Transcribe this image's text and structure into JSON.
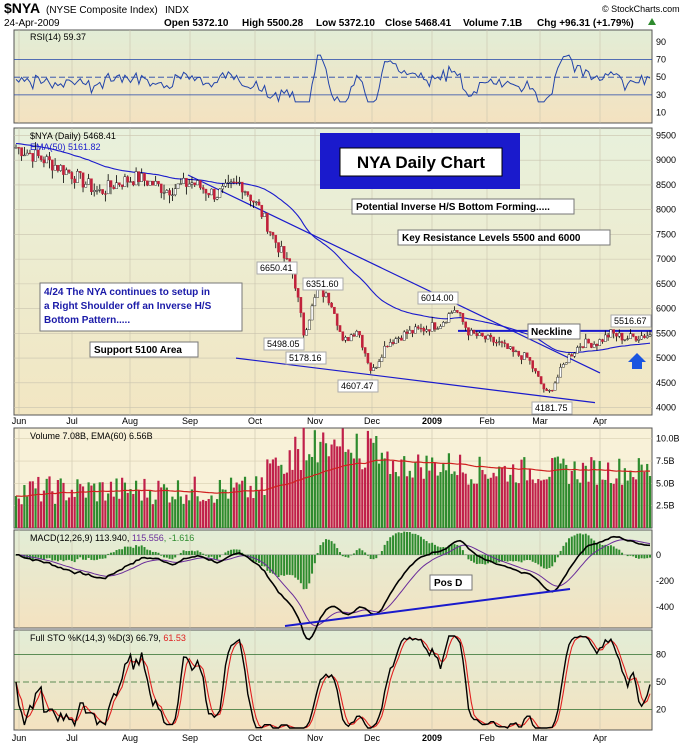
{
  "header": {
    "symbol": "$NYA",
    "name": "(NYSE Composite Index)",
    "exchange": "INDX",
    "date": "24-Apr-2009",
    "open": "Open 5372.10",
    "high": "High 5500.28",
    "low": "Low 5372.10",
    "close": "Close 5468.41",
    "volume": "Volume 7.1B",
    "chg": "Chg +96.31 (+1.79%)",
    "chg_arrow": "up-triangle-icon",
    "watermark": "© StockCharts.com"
  },
  "colors": {
    "panel_bg": "#f8f1d8",
    "price_top": "#e8f1dc",
    "price_bottom": "#f2e6c2",
    "price_line": "#000000",
    "ema": "#1a1acc",
    "trend": "#1a1acc",
    "rsi": "#2244aa",
    "vol_up": "#2e8b2e",
    "vol_down": "#c0204a",
    "vol_ema": "#d02020",
    "macd": "#000000",
    "signal": "#6a2c9a",
    "hist": "#2e8b2e",
    "sto_k": "#000000",
    "sto_d": "#e02020",
    "title_box": "#1a1acc"
  },
  "x_axis": {
    "months": [
      "Jun",
      "Jul",
      "Aug",
      "Sep",
      "Oct",
      "Nov",
      "Dec",
      "2009",
      "Feb",
      "Mar",
      "Apr"
    ]
  },
  "rsi": {
    "label": "RSI(14) 59.37",
    "ticks": [
      "90",
      "70",
      "50",
      "30",
      "10"
    ],
    "overbought": 70,
    "oversold": 30
  },
  "price": {
    "label": "$NYA (Daily) 5468.41",
    "ema_label": "EMA(50) 5161.82",
    "ticks": [
      "9500",
      "9000",
      "8500",
      "8000",
      "7500",
      "7000",
      "6500",
      "6000",
      "5500",
      "5000",
      "4500",
      "4000"
    ],
    "title_box": "NYA Daily Chart",
    "notes": {
      "inverse_hs": "Potential Inverse H/S Bottom Forming.....",
      "resistance": "Key Resistance Levels 5500 and 6000",
      "commentary": [
        "4/24  The NYA continues to setup in",
        "a Right Shoulder off an Inverse H/S",
        "Bottom Pattern....."
      ],
      "support": "Support 5100 Area",
      "neckline": "Neckline"
    },
    "value_labels": [
      "6650.41",
      "6351.60",
      "5498.05",
      "5178.16",
      "4607.47",
      "6014.00",
      "4181.75",
      "5516.67"
    ],
    "buy_arrow": "up-arrow-icon"
  },
  "volume": {
    "label": "Volume 7.08B, EMA(60) 6.56B",
    "ticks": [
      "10.0B",
      "7.5B",
      "5.0B",
      "2.5B"
    ]
  },
  "macd": {
    "label": "MACD(12,26,9) 113.940,",
    "signal_value": "115.556",
    "hist_value": ", -1.616",
    "ticks": [
      "0",
      "-200",
      "-400"
    ],
    "pos_div": "Pos D"
  },
  "sto": {
    "label": "Full STO %K(14,3) %D(3) 66.79,",
    "d_value": "61.53",
    "ticks": [
      "80",
      "50",
      "20"
    ]
  },
  "chart_data": {
    "type": "line",
    "title": "NYA Daily Chart",
    "xlabel": "",
    "ylabel": "",
    "x": [
      "Jun",
      "Jul",
      "Aug",
      "Sep",
      "Oct",
      "Nov",
      "Dec",
      "2009",
      "Feb",
      "Mar",
      "Apr"
    ],
    "ylim": [
      3800,
      9700
    ],
    "series": [
      {
        "name": "$NYA (Daily)",
        "values": [
          9260,
          8300,
          8500,
          8260,
          5600,
          5400,
          5250,
          5700,
          5000,
          4400,
          5300
        ]
      },
      {
        "name": "EMA(50)",
        "values": [
          9300,
          8700,
          8450,
          8200,
          7000,
          6000,
          5650,
          5500,
          5350,
          4900,
          5160
        ]
      }
    ],
    "annotations": [
      "6650.41",
      "6351.60",
      "5498.05",
      "5178.16",
      "4607.47",
      "6014.00",
      "4181.75",
      "5516.67"
    ],
    "legend": "top-left",
    "grid": true
  }
}
